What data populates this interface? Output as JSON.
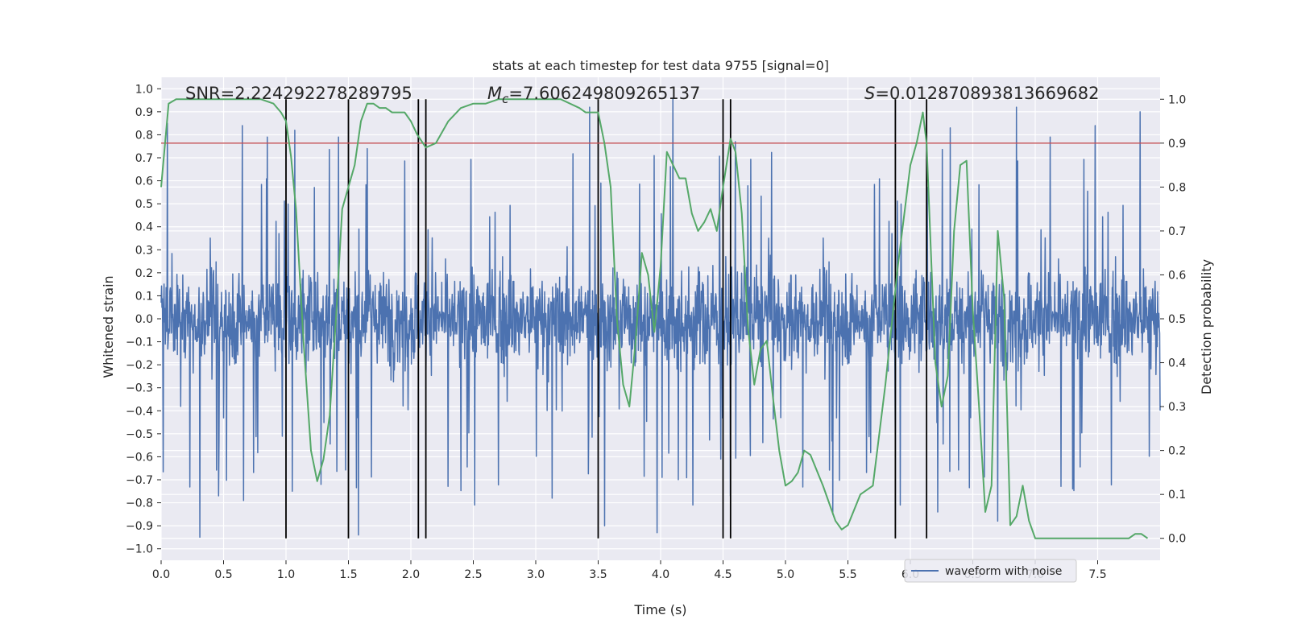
{
  "chart_data": {
    "type": "line",
    "title": "stats at each timestep for test data 9755 [signal=0]",
    "xlabel": "Time (s)",
    "ylabel_left": "Whitened strain",
    "ylabel_right": "Detection probability",
    "xlim": [
      0.0,
      8.0
    ],
    "ylim_left": [
      -1.05,
      1.05
    ],
    "ylim_right": [
      -0.05,
      1.05
    ],
    "x_ticks": [
      "0.0",
      "0.5",
      "1.0",
      "1.5",
      "2.0",
      "2.5",
      "3.0",
      "3.5",
      "4.0",
      "4.5",
      "5.0",
      "5.5",
      "6.0",
      "6.5",
      "7.0",
      "7.5"
    ],
    "y_left_ticks": [
      "1.0",
      "0.9",
      "0.8",
      "0.7",
      "0.6",
      "0.5",
      "0.4",
      "0.3",
      "0.2",
      "0.1",
      "0.0",
      "−0.1",
      "−0.2",
      "−0.3",
      "−0.4",
      "−0.5",
      "−0.6",
      "−0.7",
      "−0.8",
      "−0.9",
      "−1.0"
    ],
    "y_right_ticks": [
      "1.0",
      "0.9",
      "0.8",
      "0.7",
      "0.6",
      "0.5",
      "0.4",
      "0.3",
      "0.2",
      "0.1",
      "0.0"
    ],
    "annotations": {
      "snr": "SNR=2.224292278289795",
      "mc_symbol": "M",
      "mc_subscript": "c",
      "mc_value": "=7.606249809265137",
      "s_symbol": "S",
      "s_value": "=0.012870893813669682"
    },
    "legend": {
      "label": "waveform with noise",
      "location": "lower-right"
    },
    "threshold": {
      "value": 0.9,
      "axis": "right",
      "color": "#c44e52"
    },
    "vertical_lines_s": [
      1.0,
      1.5,
      2.06,
      2.12,
      3.5,
      4.5,
      4.56,
      5.88,
      6.13
    ],
    "series": [
      {
        "name": "waveform with noise",
        "axis": "left",
        "color": "#4c72b0",
        "style": "dense noisy strain, core band about ±0.4, spikes to about ±0.95",
        "peak_x": [
          0.05,
          0.65,
          0.85,
          1.07,
          1.42,
          1.65,
          3.43,
          3.55,
          4.1,
          4.6,
          5.38,
          6.32,
          6.85,
          7.12,
          7.48,
          7.84
        ],
        "peak_y": [
          0.85,
          0.84,
          0.79,
          0.82,
          0.79,
          0.74,
          0.92,
          0.79,
          0.96,
          0.77,
          0.86,
          0.83,
          0.92,
          0.79,
          0.84,
          0.9
        ],
        "trough_x": [
          0.31,
          0.46,
          0.66,
          1.05,
          1.28,
          1.58,
          2.51,
          3.13,
          3.55,
          3.97,
          4.26,
          4.56,
          5.38,
          5.92,
          6.22,
          6.7,
          7.3
        ],
        "trough_y": [
          -0.95,
          -0.77,
          -0.79,
          -0.75,
          -0.72,
          -0.94,
          -0.81,
          -0.78,
          -0.9,
          -0.93,
          -0.81,
          -0.77,
          -0.85,
          -0.81,
          -0.84,
          -0.88,
          -0.74
        ]
      },
      {
        "name": "detection probability",
        "axis": "right",
        "color": "#55a868",
        "x": [
          0.0,
          0.06,
          0.12,
          0.2,
          0.4,
          0.6,
          0.8,
          0.9,
          0.96,
          1.0,
          1.04,
          1.08,
          1.14,
          1.2,
          1.25,
          1.3,
          1.35,
          1.4,
          1.45,
          1.5,
          1.55,
          1.6,
          1.65,
          1.7,
          1.75,
          1.8,
          1.85,
          1.9,
          1.95,
          2.0,
          2.05,
          2.12,
          2.2,
          2.3,
          2.4,
          2.5,
          2.6,
          2.7,
          3.0,
          3.2,
          3.35,
          3.4,
          3.5,
          3.55,
          3.6,
          3.65,
          3.7,
          3.75,
          3.8,
          3.85,
          3.9,
          3.95,
          4.0,
          4.05,
          4.1,
          4.15,
          4.2,
          4.25,
          4.3,
          4.35,
          4.4,
          4.45,
          4.5,
          4.56,
          4.6,
          4.65,
          4.7,
          4.75,
          4.8,
          4.85,
          4.9,
          4.95,
          5.0,
          5.05,
          5.1,
          5.15,
          5.2,
          5.3,
          5.4,
          5.45,
          5.5,
          5.6,
          5.7,
          5.8,
          5.9,
          6.0,
          6.05,
          6.1,
          6.13,
          6.2,
          6.25,
          6.3,
          6.35,
          6.4,
          6.45,
          6.5,
          6.55,
          6.6,
          6.65,
          6.7,
          6.75,
          6.8,
          6.85,
          6.9,
          6.95,
          7.0,
          7.05,
          7.1,
          7.2,
          7.4,
          7.6,
          7.7,
          7.75,
          7.8,
          7.85,
          7.9
        ],
        "y": [
          0.8,
          0.99,
          1.0,
          1.0,
          1.0,
          1.0,
          1.0,
          0.99,
          0.97,
          0.95,
          0.87,
          0.75,
          0.45,
          0.2,
          0.13,
          0.18,
          0.28,
          0.5,
          0.75,
          0.8,
          0.85,
          0.95,
          0.99,
          0.99,
          0.98,
          0.98,
          0.97,
          0.97,
          0.97,
          0.95,
          0.92,
          0.89,
          0.9,
          0.95,
          0.98,
          0.99,
          0.99,
          1.0,
          1.0,
          1.0,
          0.98,
          0.97,
          0.97,
          0.9,
          0.8,
          0.5,
          0.35,
          0.3,
          0.45,
          0.65,
          0.6,
          0.47,
          0.62,
          0.88,
          0.85,
          0.82,
          0.82,
          0.74,
          0.7,
          0.72,
          0.75,
          0.7,
          0.8,
          0.91,
          0.88,
          0.74,
          0.48,
          0.35,
          0.43,
          0.45,
          0.32,
          0.2,
          0.12,
          0.13,
          0.15,
          0.2,
          0.19,
          0.12,
          0.04,
          0.02,
          0.03,
          0.1,
          0.12,
          0.35,
          0.62,
          0.85,
          0.9,
          0.97,
          0.9,
          0.4,
          0.3,
          0.37,
          0.7,
          0.85,
          0.86,
          0.52,
          0.3,
          0.06,
          0.12,
          0.7,
          0.55,
          0.03,
          0.05,
          0.12,
          0.04,
          0.0,
          0.0,
          0.0,
          0.0,
          0.0,
          0.0,
          0.0,
          0.0,
          0.01,
          0.01,
          0.0
        ]
      }
    ]
  }
}
